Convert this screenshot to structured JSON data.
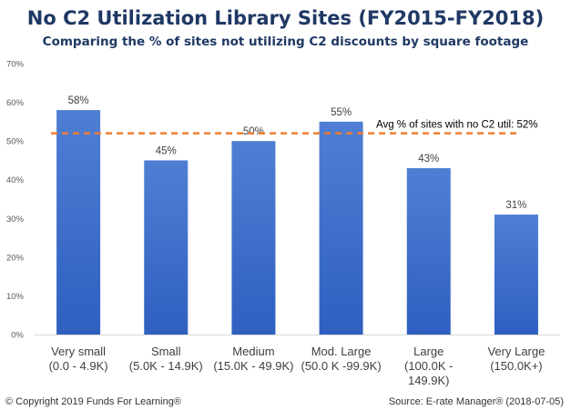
{
  "footer": {
    "copyright": "© Copyright 2019 Funds For Learning®",
    "source": "Source: E-rate Manager® (2018-07-05)"
  },
  "chart_data": {
    "type": "bar",
    "title": "No C2 Utilization Library Sites (FY2015-FY2018)",
    "subtitle": "Comparing the % of sites not utilizing C2 discounts by square footage",
    "categories": [
      [
        "Very small",
        "(0.0 - 4.9K)"
      ],
      [
        "Small",
        "(5.0K - 14.9K)"
      ],
      [
        "Medium",
        "(15.0K - 49.9K)"
      ],
      [
        "Mod. Large",
        "(50.0 K -99.9K)"
      ],
      [
        "Large",
        "(100.0K -",
        "149.9K)"
      ],
      [
        "Very Large",
        "(150.0K+)"
      ]
    ],
    "values": [
      58,
      45,
      50,
      55,
      43,
      31
    ],
    "data_labels": [
      "58%",
      "45%",
      "50%",
      "55%",
      "43%",
      "31%"
    ],
    "ylim": [
      0,
      70
    ],
    "yticks": [
      "0%",
      "10%",
      "20%",
      "30%",
      "40%",
      "50%",
      "60%",
      "70%"
    ],
    "grid": false,
    "reference_line": {
      "value": 52,
      "label": "Avg % of sites with no C2 util: 52%",
      "color": "#ed7d31",
      "style": "dashed"
    },
    "bar_color_top": "#4f7fd4",
    "bar_color_bottom": "#2f5fc0"
  }
}
